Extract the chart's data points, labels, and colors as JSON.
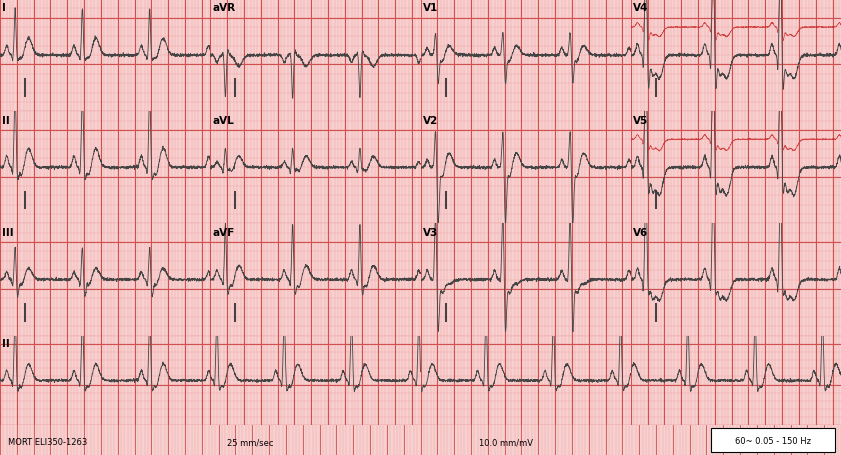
{
  "title": "",
  "bg_color": "#f9d0d0",
  "grid_minor_color": "#e8a0a0",
  "grid_major_color": "#d05050",
  "ecg_color": "#444444",
  "ecg_color2": "#cc2222",
  "fig_width": 8.41,
  "fig_height": 4.56,
  "dpi": 100,
  "footer_text_left": "MORT ELI350-1263",
  "footer_text_center1": "25 mm/sec",
  "footer_text_center2": "10.0 mm/mV",
  "footer_text_right": "60~ 0.05 - 150 Hz",
  "ecg_lw": 0.6,
  "minor_lw": 0.3,
  "major_lw": 0.8,
  "n_rows": 4,
  "n_cols": 4
}
